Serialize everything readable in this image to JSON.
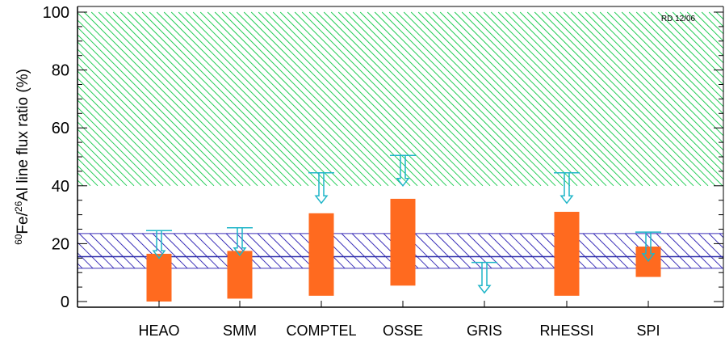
{
  "chart_data": {
    "type": "bar",
    "title": "",
    "xlabel": "",
    "ylabel_parts": {
      "sup1": "60",
      "mid1": "Fe/",
      "sup2": "26",
      "rest": "Al line flux ratio (%)"
    },
    "ylim": [
      0,
      100
    ],
    "yticks": [
      "0",
      "20",
      "40",
      "60",
      "80",
      "100"
    ],
    "annotation": "RD 12/06",
    "categories": [
      "HEAO",
      "SMM",
      "COMPTEL",
      "OSSE",
      "GRIS",
      "RHESSI",
      "SPI"
    ],
    "measurement_ranges": [
      {
        "name": "HEAO",
        "low": 0,
        "high": 16.5
      },
      {
        "name": "SMM",
        "low": 1,
        "high": 17.5
      },
      {
        "name": "COMPTEL",
        "low": 2,
        "high": 30.5
      },
      {
        "name": "OSSE",
        "low": 5.5,
        "high": 35.5
      },
      {
        "name": "GRIS",
        "low": null,
        "high": null
      },
      {
        "name": "RHESSI",
        "low": 2,
        "high": 31
      },
      {
        "name": "SPI",
        "low": 8.5,
        "high": 19
      }
    ],
    "upper_limits": [
      {
        "name": "HEAO",
        "limit": 24.5,
        "arrow_to": 15
      },
      {
        "name": "SMM",
        "limit": 25.5,
        "arrow_to": 16
      },
      {
        "name": "COMPTEL",
        "limit": 44.5,
        "arrow_to": 34
      },
      {
        "name": "OSSE",
        "limit": 50.5,
        "arrow_to": 40
      },
      {
        "name": "GRIS",
        "limit": 13.5,
        "arrow_to": 3
      },
      {
        "name": "RHESSI",
        "limit": 44.5,
        "arrow_to": 34
      },
      {
        "name": "SPI",
        "limit": 24,
        "arrow_to": 14
      }
    ],
    "hatched_regions": [
      {
        "low": 40,
        "high": 100,
        "color": "#22cc55"
      },
      {
        "low": 11.5,
        "high": 23.5,
        "color": "#3a2fb8"
      }
    ],
    "reference_line": 15.5,
    "colors": {
      "bar": "#ff6a1f",
      "arrow": "#1fb5c8",
      "green_hatch": "#22cc55",
      "blue_hatch": "#3a2fb8",
      "reference_line": "#2a2aa8"
    }
  }
}
